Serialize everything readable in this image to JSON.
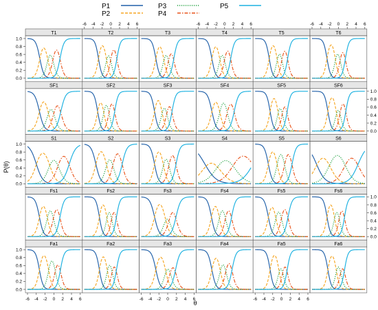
{
  "chart_data": {
    "type": "line",
    "xlabel": "θ",
    "ylabel": "P(θ)",
    "xlim": [
      -6,
      6
    ],
    "ylim": [
      0,
      1
    ],
    "x_ticks": [
      "-6",
      "-4",
      "-2",
      "0",
      "2",
      "4",
      "6"
    ],
    "y_ticks": [
      "0.0",
      "0.2",
      "0.4",
      "0.6",
      "0.8",
      "1.0"
    ],
    "legend": {
      "placement": "top",
      "entries": [
        {
          "name": "P1",
          "color": "#1f5fa8",
          "style": "solid"
        },
        {
          "name": "P2",
          "color": "#f5a623",
          "style": "dashed"
        },
        {
          "name": "P3",
          "color": "#1a9e3a",
          "style": "dotted"
        },
        {
          "name": "P4",
          "color": "#e8541b",
          "style": "dashdot"
        },
        {
          "name": "P5",
          "color": "#1ab0e0",
          "style": "solid"
        }
      ]
    },
    "grid": false,
    "panels": [
      {
        "label": "T1",
        "a": 1.3,
        "b": [
          -3.2,
          -1.4,
          -0.2,
          1.4
        ]
      },
      {
        "label": "T2",
        "a": 1.5,
        "b": [
          -2.8,
          -1.0,
          0.0,
          1.4
        ]
      },
      {
        "label": "T3",
        "a": 1.4,
        "b": [
          -2.7,
          -0.9,
          0.2,
          1.4
        ]
      },
      {
        "label": "T4",
        "a": 1.4,
        "b": [
          -2.9,
          -1.1,
          0.0,
          1.4
        ]
      },
      {
        "label": "T5",
        "a": 1.5,
        "b": [
          -2.8,
          -1.0,
          0.1,
          1.4
        ]
      },
      {
        "label": "T6",
        "a": 1.5,
        "b": [
          -2.6,
          -0.7,
          0.4,
          1.6
        ]
      },
      {
        "label": "SF1",
        "a": 1.1,
        "b": [
          -3.3,
          -1.3,
          0.0,
          1.6
        ]
      },
      {
        "label": "SF2",
        "a": 1.5,
        "b": [
          -3.0,
          -1.6,
          -0.4,
          0.9
        ]
      },
      {
        "label": "SF3",
        "a": 1.4,
        "b": [
          -3.0,
          -1.3,
          -0.2,
          1.0
        ]
      },
      {
        "label": "SF4",
        "a": 1.2,
        "b": [
          -2.9,
          -1.1,
          0.6,
          2.2
        ]
      },
      {
        "label": "SF5",
        "a": 1.5,
        "b": [
          -2.6,
          -0.8,
          0.2,
          1.3
        ]
      },
      {
        "label": "SF6",
        "a": 1.5,
        "b": [
          -2.4,
          -0.5,
          0.4,
          1.7
        ]
      },
      {
        "label": "S1",
        "a": 0.8,
        "b": [
          -4.0,
          -1.0,
          1.0,
          3.5
        ]
      },
      {
        "label": "S2",
        "a": 1.1,
        "b": [
          -3.4,
          -1.0,
          0.5,
          2.6
        ]
      },
      {
        "label": "S3",
        "a": 1.3,
        "b": [
          -3.0,
          -1.0,
          0.3,
          1.9
        ]
      },
      {
        "label": "S4",
        "a": 0.45,
        "b": [
          -4.5,
          -1.5,
          2.0,
          6.5
        ]
      },
      {
        "label": "S5",
        "a": 1.3,
        "b": [
          -3.0,
          -1.0,
          0.7,
          2.4
        ]
      },
      {
        "label": "S6",
        "a": 0.6,
        "b": [
          -5.0,
          -2.0,
          1.5,
          4.5
        ]
      },
      {
        "label": "Fs1",
        "a": 1.3,
        "b": [
          -3.3,
          -1.5,
          -0.1,
          1.4
        ]
      },
      {
        "label": "Fs2",
        "a": 1.5,
        "b": [
          -2.6,
          -0.9,
          0.2,
          1.3
        ]
      },
      {
        "label": "Fs3",
        "a": 1.1,
        "b": [
          -3.0,
          -0.6,
          0.4,
          1.9
        ]
      },
      {
        "label": "Fs4",
        "a": 1.3,
        "b": [
          -3.0,
          -1.2,
          0.2,
          1.6
        ]
      },
      {
        "label": "Fs5",
        "a": 1.3,
        "b": [
          -3.0,
          -1.3,
          0.0,
          1.5
        ]
      },
      {
        "label": "Fs6",
        "a": 1.5,
        "b": [
          -2.6,
          -0.9,
          0.2,
          1.4
        ]
      },
      {
        "label": "Fa1",
        "a": 1.4,
        "b": [
          -3.3,
          -1.2,
          0.3,
          1.5
        ]
      },
      {
        "label": "Fa2",
        "a": 1.5,
        "b": [
          -2.6,
          -0.8,
          0.3,
          1.3
        ]
      },
      {
        "label": "Fa3",
        "a": 1.2,
        "b": [
          -2.7,
          -0.5,
          0.6,
          1.8
        ]
      },
      {
        "label": "Fa4",
        "a": 1.3,
        "b": [
          -2.9,
          -1.0,
          0.3,
          1.7
        ]
      },
      {
        "label": "Fa5",
        "a": 1.5,
        "b": [
          -2.6,
          -0.6,
          0.3,
          1.3
        ]
      },
      {
        "label": "Fa6",
        "a": 1.5,
        "b": [
          -2.4,
          -0.5,
          0.5,
          1.4
        ]
      }
    ]
  }
}
